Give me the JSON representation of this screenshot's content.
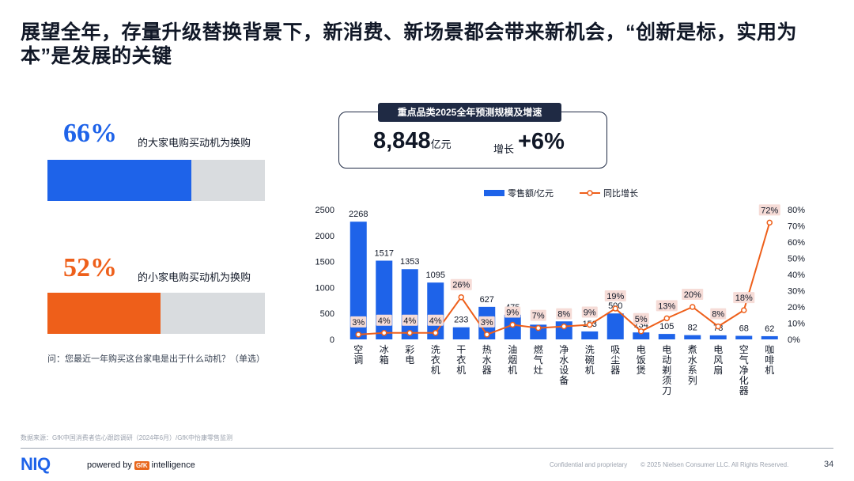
{
  "title": "展望全年，存量升级替换背景下，新消费、新场景都会带来新机会，“创新是标，实用为本”是发展的关键",
  "stats": [
    {
      "value": "66%",
      "label": "的大家电购买动机为换购",
      "fraction": 0.66,
      "color": "#1e63e9"
    },
    {
      "value": "52%",
      "label": "的小家电购买动机为换购",
      "fraction": 0.52,
      "color": "#ee5f1a"
    }
  ],
  "question": "问：您最近一年购买这台家电是出于什么动机？（单选）",
  "kpi": {
    "header": "重点品类2025全年预测规模及增速",
    "value": "8,848",
    "unit": "亿元",
    "growth_label": "增长",
    "growth_value": "+6%"
  },
  "chart_data": {
    "type": "bar",
    "categories": [
      "空调",
      "冰箱",
      "彩电",
      "洗衣机",
      "干衣机",
      "热水器",
      "油烟机",
      "燃气灶",
      "净水设备",
      "洗碗机",
      "吸尘器",
      "电饭煲",
      "电动剃须刀",
      "煮水系列",
      "电风扇",
      "空气净化器",
      "咖啡机"
    ],
    "series": [
      {
        "name": "零售额/亿元",
        "type": "bar",
        "axis": "left",
        "color": "#1e63e9",
        "values": [
          2268,
          1517,
          1353,
          1095,
          233,
          627,
          475,
          284,
          347,
          153,
          500,
          134,
          105,
          82,
          78,
          68,
          62
        ]
      },
      {
        "name": "同比增长",
        "type": "line",
        "axis": "right",
        "color": "#ee5f1a",
        "values": [
          3,
          4,
          4,
          4,
          26,
          3,
          9,
          7,
          8,
          9,
          19,
          5,
          13,
          20,
          8,
          18,
          72
        ]
      }
    ],
    "bar_labels": [
      "2268",
      "1517",
      "1353",
      "1095",
      "233",
      "627",
      "475",
      "284",
      "347",
      "153",
      "500",
      "134",
      "105",
      "82",
      "78",
      "68",
      "62"
    ],
    "line_labels": [
      "3%",
      "4%",
      "4%",
      "4%",
      "26%",
      "3%",
      "9%",
      "7%",
      "8%",
      "9%",
      "19%",
      "5%",
      "13%",
      "20%",
      "8%",
      "18%",
      "72%"
    ],
    "y_left": {
      "ticks": [
        "0",
        "500",
        "1000",
        "1500",
        "2000",
        "2500"
      ],
      "range": [
        0,
        2500
      ]
    },
    "y_right": {
      "ticks": [
        "0%",
        "10%",
        "20%",
        "30%",
        "40%",
        "50%",
        "60%",
        "70%",
        "80%"
      ],
      "range": [
        0,
        80
      ]
    },
    "legend": [
      "零售额/亿元",
      "同比增长"
    ]
  },
  "footer": {
    "source": "数据来源：GfK中国消费者信心跟踪调研（2024年6月）/GfK中怡康零售监测",
    "brand": "NIQ",
    "powered_by": "powered by",
    "gfk": "GfK",
    "intelligence": "intelligence",
    "confidential": "Confidential and proprietary",
    "copyright": "© 2025 Nielsen Consumer LLC. All Rights Reserved.",
    "page": "34"
  }
}
